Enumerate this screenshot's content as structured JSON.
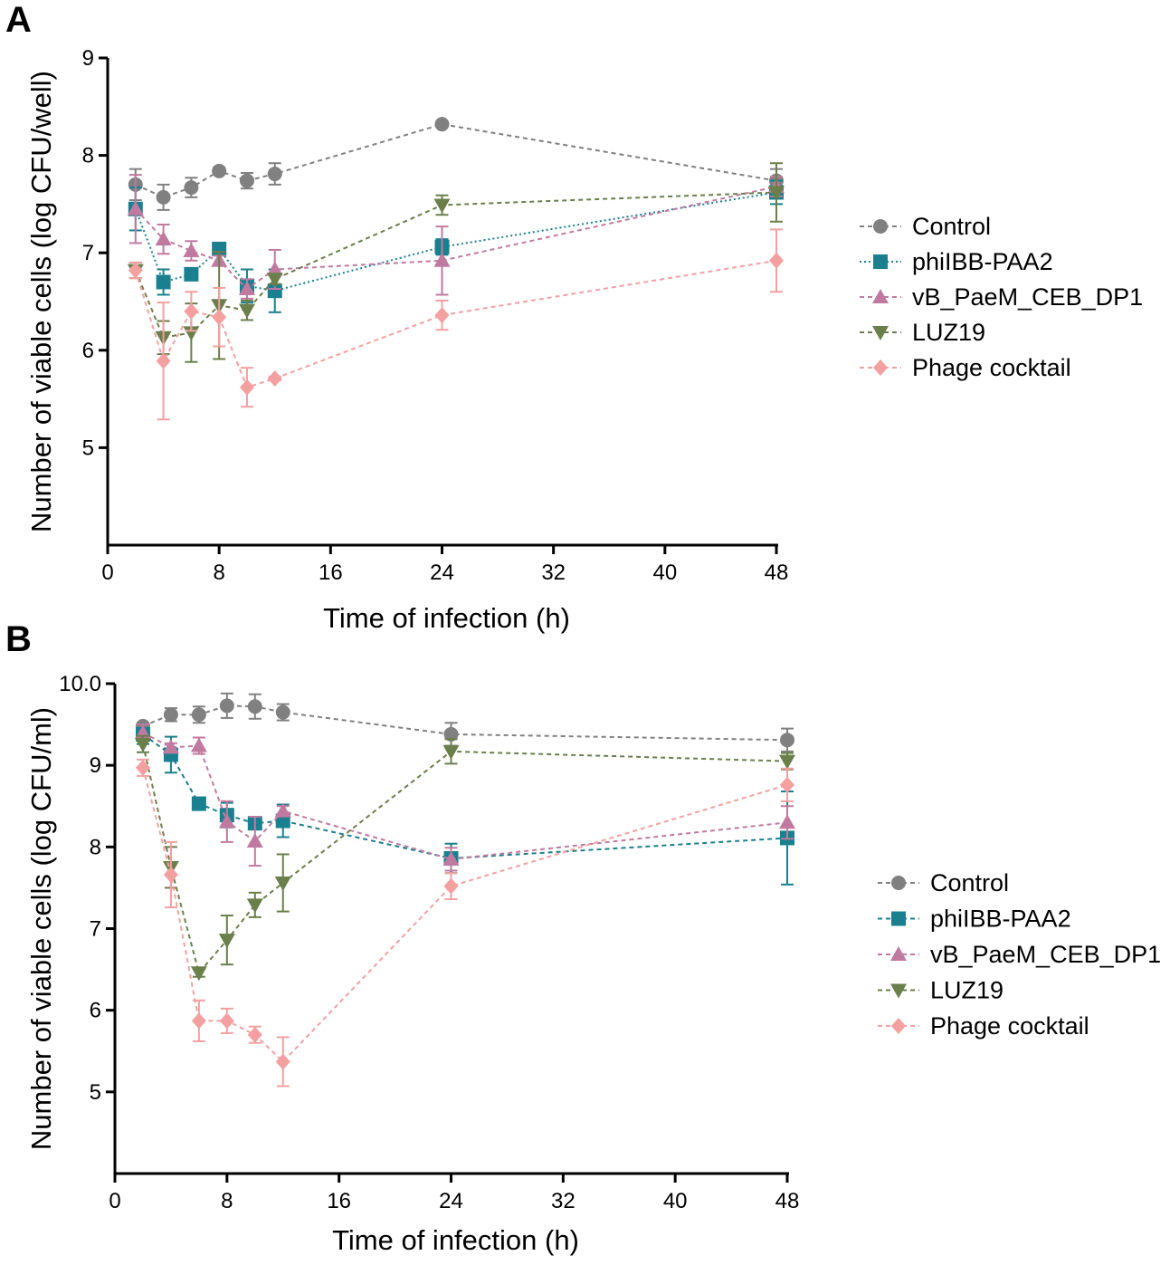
{
  "chart_data": [
    {
      "panel_label": "A",
      "type": "line",
      "xlabel": "Time of infection (h)",
      "ylabel": "Number of viable cells (log CFU/well)",
      "xlim": [
        0,
        48
      ],
      "ylim": [
        4,
        9
      ],
      "xticks": [
        0,
        8,
        16,
        24,
        32,
        40,
        48
      ],
      "yticks": [
        5,
        6,
        7,
        8,
        9
      ],
      "legend_position": "right",
      "series": [
        {
          "name": "Control",
          "color": "#808080",
          "marker": "circle",
          "dash": "dashed",
          "x": [
            2,
            4,
            6,
            8,
            10,
            12,
            24,
            48
          ],
          "values": [
            7.7,
            7.57,
            7.67,
            7.84,
            7.74,
            7.81,
            8.32,
            7.74
          ],
          "errors": [
            0.16,
            0.13,
            0.1,
            0.03,
            0.08,
            0.11,
            0.02,
            0.12
          ]
        },
        {
          "name": "phiIBB-PAA2",
          "color": "#1a7f8e",
          "marker": "square",
          "dash": "dotted",
          "x": [
            2,
            4,
            6,
            8,
            10,
            12,
            24,
            48
          ],
          "values": [
            7.45,
            6.7,
            6.78,
            7.04,
            6.66,
            6.61,
            7.06,
            7.62
          ],
          "errors": [
            0.22,
            0.13,
            0.05,
            0.03,
            0.17,
            0.22,
            0.08,
            0.12
          ]
        },
        {
          "name": "vB_PaeM_CEB_DP1",
          "color": "#c07aa0",
          "marker": "triangle-up",
          "dash": "dashed",
          "x": [
            2,
            4,
            6,
            8,
            10,
            12,
            24,
            48
          ],
          "values": [
            7.45,
            7.14,
            7.02,
            6.92,
            6.63,
            6.83,
            6.92,
            7.68
          ],
          "errors": [
            0.35,
            0.15,
            0.1,
            0.05,
            0.1,
            0.2,
            0.35,
            0.1
          ]
        },
        {
          "name": "LUZ19",
          "color": "#6a7f4a",
          "marker": "triangle-down",
          "dash": "dashed",
          "x": [
            2,
            4,
            6,
            8,
            10,
            12,
            24,
            48
          ],
          "values": [
            6.82,
            6.13,
            6.18,
            6.46,
            6.41,
            6.73,
            7.49,
            7.62
          ],
          "errors": [
            0.08,
            0.17,
            0.3,
            0.55,
            0.1,
            0.05,
            0.1,
            0.3
          ]
        },
        {
          "name": "Phage cocktail",
          "color": "#f4a0a0",
          "marker": "diamond",
          "dash": "dashed",
          "x": [
            2,
            4,
            6,
            8,
            10,
            12,
            24,
            48
          ],
          "values": [
            6.82,
            5.89,
            6.4,
            6.34,
            5.62,
            5.71,
            6.36,
            6.92
          ],
          "errors": [
            0.08,
            0.6,
            0.2,
            0.3,
            0.2,
            0.02,
            0.15,
            0.32
          ]
        }
      ]
    },
    {
      "panel_label": "B",
      "type": "line",
      "xlabel": "Time of infection (h)",
      "ylabel": "Number of viable cells (log CFU/ml)",
      "xlim": [
        0,
        48
      ],
      "ylim": [
        4,
        10
      ],
      "xticks": [
        0,
        8,
        16,
        24,
        32,
        40,
        48
      ],
      "yticks": [
        "5",
        "6",
        "7",
        "8",
        "9",
        "10.0"
      ],
      "legend_position": "right",
      "series": [
        {
          "name": "Control",
          "color": "#808080",
          "marker": "circle",
          "dash": "dashed",
          "x": [
            2,
            4,
            6,
            8,
            10,
            12,
            24,
            48
          ],
          "values": [
            9.48,
            9.62,
            9.62,
            9.73,
            9.72,
            9.65,
            9.38,
            9.31
          ],
          "errors": [
            0.04,
            0.08,
            0.1,
            0.15,
            0.15,
            0.1,
            0.14,
            0.14
          ]
        },
        {
          "name": "phiIBB-PAA2",
          "color": "#1a7f8e",
          "marker": "square",
          "dash": "dashed",
          "x": [
            2,
            4,
            6,
            8,
            10,
            12,
            24,
            48
          ],
          "values": [
            9.38,
            9.13,
            8.53,
            8.39,
            8.29,
            8.32,
            7.86,
            8.11
          ],
          "errors": [
            0.12,
            0.22,
            0.03,
            0.15,
            0.05,
            0.2,
            0.18,
            0.57
          ]
        },
        {
          "name": "vB_PaeM_CEB_DP1",
          "color": "#c07aa0",
          "marker": "triangle-up",
          "dash": "dashed",
          "x": [
            2,
            4,
            6,
            8,
            10,
            12,
            24,
            48
          ],
          "values": [
            9.4,
            9.22,
            9.24,
            8.31,
            8.07,
            8.44,
            7.85,
            8.3
          ],
          "errors": [
            0.1,
            0.05,
            0.1,
            0.25,
            0.3,
            0.06,
            0.14,
            0.2
          ]
        },
        {
          "name": "LUZ19",
          "color": "#6a7f4a",
          "marker": "triangle-down",
          "dash": "dashed",
          "x": [
            2,
            4,
            6,
            8,
            10,
            12,
            24,
            48
          ],
          "values": [
            9.26,
            7.75,
            6.46,
            6.86,
            7.29,
            7.56,
            9.17,
            9.05
          ],
          "errors": [
            0.1,
            0.25,
            0.05,
            0.3,
            0.15,
            0.35,
            0.15,
            0.1
          ]
        },
        {
          "name": "Phage cocktail",
          "color": "#f4a0a0",
          "marker": "diamond",
          "dash": "dashed",
          "x": [
            2,
            4,
            6,
            8,
            10,
            12,
            24,
            48
          ],
          "values": [
            8.97,
            7.66,
            5.87,
            5.87,
            5.7,
            5.37,
            7.52,
            8.76
          ],
          "errors": [
            0.1,
            0.4,
            0.25,
            0.15,
            0.1,
            0.3,
            0.16,
            0.2
          ]
        }
      ]
    }
  ]
}
